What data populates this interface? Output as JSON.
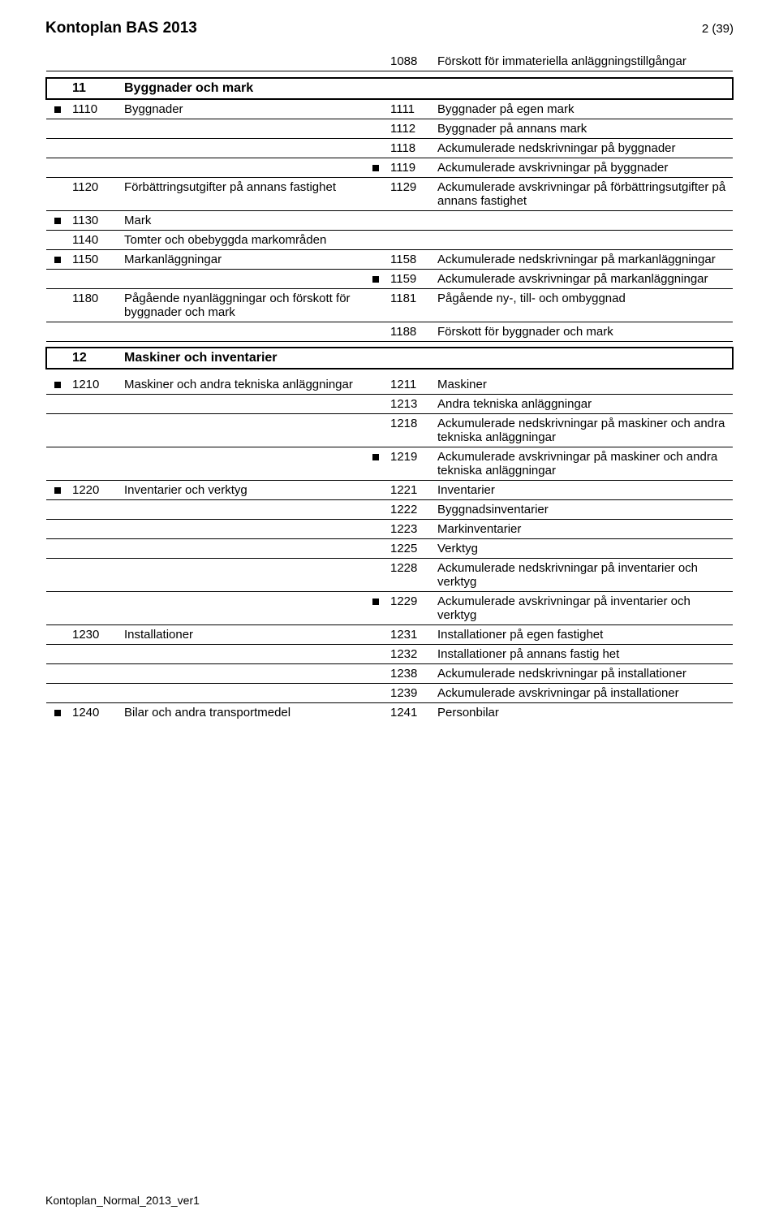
{
  "header": {
    "title": "Kontoplan BAS 2013",
    "page": "2 (39)"
  },
  "footer": "Kontoplan_Normal_2013_ver1",
  "sections": {
    "s11": {
      "code": "11",
      "title": "Byggnader och mark"
    },
    "s12": {
      "code": "12",
      "title": "Maskiner och inventarier"
    }
  },
  "rows": {
    "r1088": {
      "code": "1088",
      "text": "Förskott för immateriella anläggningstillgångar"
    },
    "r1110": {
      "code": "1110",
      "text": "Byggnader"
    },
    "r1111": {
      "code": "1111",
      "text": "Byggnader på egen mark"
    },
    "r1112": {
      "code": "1112",
      "text": "Byggnader på annans mark"
    },
    "r1118": {
      "code": "1118",
      "text": "Ackumulerade nedskrivningar på byggnader"
    },
    "r1119": {
      "code": "1119",
      "text": "Ackumulerade avskrivningar på byggnader"
    },
    "r1120": {
      "code": "1120",
      "text": "Förbättringsutgifter på annans fastighet"
    },
    "r1129": {
      "code": "1129",
      "text": "Ackumulerade avskrivningar på förbättringsutgifter på annans fastighet"
    },
    "r1130": {
      "code": "1130",
      "text": "Mark"
    },
    "r1140": {
      "code": "1140",
      "text": "Tomter och obebyggda markområden"
    },
    "r1150": {
      "code": "1150",
      "text": "Markanläggningar"
    },
    "r1158": {
      "code": "1158",
      "text": "Ackumulerade nedskrivningar på markanläggningar"
    },
    "r1159": {
      "code": "1159",
      "text": "Ackumulerade avskrivningar på markanläggningar"
    },
    "r1180": {
      "code": "1180",
      "text": "Pågående nyanläggningar och förskott för byggnader och mark"
    },
    "r1181": {
      "code": "1181",
      "text": "Pågående ny-, till- och ombyggnad"
    },
    "r1188": {
      "code": "1188",
      "text": "Förskott för byggnader och mark"
    },
    "r1210": {
      "code": "1210",
      "text": "Maskiner och andra tekniska anläggningar"
    },
    "r1211": {
      "code": "1211",
      "text": "Maskiner"
    },
    "r1213": {
      "code": "1213",
      "text": "Andra tekniska anläggningar"
    },
    "r1218": {
      "code": "1218",
      "text": "Ackumulerade nedskrivningar på maskiner och andra tekniska anläggningar"
    },
    "r1219": {
      "code": "1219",
      "text": "Ackumulerade avskrivningar på maskiner och andra tekniska anläggningar"
    },
    "r1220": {
      "code": "1220",
      "text": "Inventarier och verktyg"
    },
    "r1221": {
      "code": "1221",
      "text": "Inventarier"
    },
    "r1222": {
      "code": "1222",
      "text": "Byggnadsinventarier"
    },
    "r1223": {
      "code": "1223",
      "text": "Markinventarier"
    },
    "r1225": {
      "code": "1225",
      "text": "Verktyg"
    },
    "r1228": {
      "code": "1228",
      "text": "Ackumulerade nedskrivningar på inventarier och verktyg"
    },
    "r1229": {
      "code": "1229",
      "text": "Ackumulerade avskrivningar på inventarier och verktyg"
    },
    "r1230": {
      "code": "1230",
      "text": "Installationer"
    },
    "r1231": {
      "code": "1231",
      "text": "Installationer på egen fastighet"
    },
    "r1232": {
      "code": "1232",
      "text": "Installationer på annans fastig het"
    },
    "r1238": {
      "code": "1238",
      "text": "Ackumulerade nedskrivningar på installationer"
    },
    "r1239": {
      "code": "1239",
      "text": "Ackumulerade avskrivningar på installationer"
    },
    "r1240": {
      "code": "1240",
      "text": "Bilar och andra transportmedel"
    },
    "r1241": {
      "code": "1241",
      "text": "Personbilar"
    }
  }
}
